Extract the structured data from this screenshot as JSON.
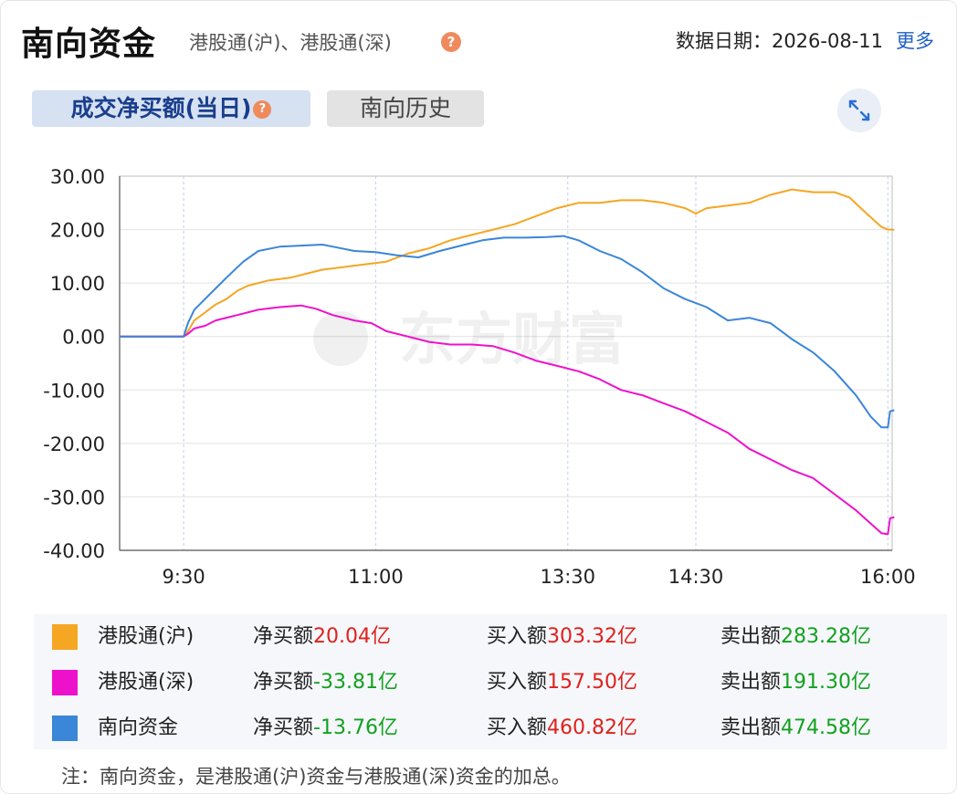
{
  "header": {
    "title": "南向资金",
    "subtitle": "港股通(沪)、港股通(深)",
    "help_glyph": "?",
    "date_label": "数据日期：2026-08-11",
    "more_label": "更多"
  },
  "tabs": [
    {
      "label": "成交净买额(当日)",
      "active": true
    },
    {
      "label": "南向历史",
      "active": false
    }
  ],
  "watermark": "东方财富",
  "icons": {
    "help": "help-icon",
    "expand": "expand-icon"
  },
  "chart_data": {
    "type": "line",
    "yticks": [
      "30.00",
      "20.00",
      "10.00",
      "0.00",
      "-10.00",
      "-20.00",
      "-30.00",
      "-40.00"
    ],
    "ylim": [
      -40,
      30
    ],
    "xlim": [
      0,
      330
    ],
    "xticks": [
      {
        "label": "9:30",
        "x": 0
      },
      {
        "label": "11:00",
        "x": 90
      },
      {
        "label": "13:30",
        "x": 180
      },
      {
        "label": "14:30",
        "x": 240
      },
      {
        "label": "16:00",
        "x": 330
      }
    ],
    "x_range_label_start": "9:30",
    "x_range_label_end": "16:00",
    "grid": true,
    "series": [
      {
        "name": "港股通(沪)",
        "color": "#f5a623",
        "points": [
          [
            -30,
            0
          ],
          [
            0,
            0
          ],
          [
            2,
            1
          ],
          [
            5,
            3
          ],
          [
            10,
            4.5
          ],
          [
            15,
            6
          ],
          [
            20,
            7
          ],
          [
            25,
            8.5
          ],
          [
            30,
            9.5
          ],
          [
            40,
            10.5
          ],
          [
            50,
            11
          ],
          [
            55,
            11.5
          ],
          [
            65,
            12.5
          ],
          [
            75,
            13
          ],
          [
            85,
            13.5
          ],
          [
            95,
            14
          ],
          [
            105,
            15.5
          ],
          [
            115,
            16.5
          ],
          [
            125,
            18
          ],
          [
            135,
            19
          ],
          [
            145,
            20
          ],
          [
            155,
            21
          ],
          [
            165,
            22.5
          ],
          [
            175,
            24
          ],
          [
            185,
            25
          ],
          [
            195,
            25
          ],
          [
            205,
            25.5
          ],
          [
            215,
            25.5
          ],
          [
            225,
            25
          ],
          [
            235,
            24
          ],
          [
            240,
            23
          ],
          [
            245,
            24
          ],
          [
            255,
            24.5
          ],
          [
            265,
            25
          ],
          [
            275,
            26.5
          ],
          [
            285,
            27.5
          ],
          [
            295,
            27
          ],
          [
            305,
            27
          ],
          [
            312,
            26
          ],
          [
            320,
            23
          ],
          [
            327,
            20.5
          ],
          [
            330,
            20
          ],
          [
            333,
            20
          ]
        ]
      },
      {
        "name": "港股通(深)",
        "color": "#ee11cc",
        "points": [
          [
            -30,
            0
          ],
          [
            0,
            0
          ],
          [
            2,
            0.5
          ],
          [
            5,
            1.5
          ],
          [
            10,
            2
          ],
          [
            15,
            3
          ],
          [
            25,
            4
          ],
          [
            35,
            5
          ],
          [
            45,
            5.5
          ],
          [
            55,
            5.8
          ],
          [
            62,
            5.2
          ],
          [
            70,
            4
          ],
          [
            80,
            3
          ],
          [
            88,
            2.5
          ],
          [
            95,
            1
          ],
          [
            105,
            0
          ],
          [
            115,
            -1
          ],
          [
            125,
            -1.5
          ],
          [
            135,
            -1.5
          ],
          [
            145,
            -1.8
          ],
          [
            155,
            -3
          ],
          [
            165,
            -4.5
          ],
          [
            175,
            -5.5
          ],
          [
            185,
            -6.5
          ],
          [
            195,
            -8
          ],
          [
            205,
            -10
          ],
          [
            215,
            -11
          ],
          [
            225,
            -12.5
          ],
          [
            235,
            -14
          ],
          [
            245,
            -16
          ],
          [
            255,
            -18
          ],
          [
            265,
            -21
          ],
          [
            275,
            -23
          ],
          [
            285,
            -25
          ],
          [
            295,
            -26.5
          ],
          [
            305,
            -29.5
          ],
          [
            315,
            -32.5
          ],
          [
            322,
            -35
          ],
          [
            327,
            -36.8
          ],
          [
            330,
            -37
          ],
          [
            331,
            -34
          ],
          [
            333,
            -33.8
          ]
        ]
      },
      {
        "name": "南向资金",
        "color": "#3a86d8",
        "points": [
          [
            -30,
            0
          ],
          [
            0,
            0
          ],
          [
            2,
            2.5
          ],
          [
            5,
            5
          ],
          [
            10,
            7
          ],
          [
            15,
            9
          ],
          [
            20,
            11
          ],
          [
            28,
            14
          ],
          [
            35,
            16
          ],
          [
            45,
            16.8
          ],
          [
            55,
            17
          ],
          [
            65,
            17.2
          ],
          [
            70,
            16.8
          ],
          [
            80,
            16
          ],
          [
            90,
            15.8
          ],
          [
            100,
            15.2
          ],
          [
            110,
            14.8
          ],
          [
            120,
            16
          ],
          [
            130,
            17
          ],
          [
            140,
            18
          ],
          [
            150,
            18.5
          ],
          [
            160,
            18.5
          ],
          [
            170,
            18.6
          ],
          [
            178,
            18.8
          ],
          [
            185,
            18
          ],
          [
            195,
            16
          ],
          [
            205,
            14.5
          ],
          [
            215,
            12
          ],
          [
            225,
            9
          ],
          [
            235,
            7
          ],
          [
            245,
            5.5
          ],
          [
            255,
            3
          ],
          [
            265,
            3.5
          ],
          [
            275,
            2.5
          ],
          [
            285,
            -0.5
          ],
          [
            295,
            -3
          ],
          [
            305,
            -6.5
          ],
          [
            315,
            -11
          ],
          [
            322,
            -15
          ],
          [
            327,
            -17
          ],
          [
            330,
            -17
          ],
          [
            331,
            -14
          ],
          [
            333,
            -13.8
          ]
        ]
      }
    ]
  },
  "legend": [
    {
      "name": "港股通(沪)",
      "color": "#f5a623",
      "net_label": "净买额",
      "net_value": "20.04亿",
      "net_dir": "up",
      "buy_label": "买入额",
      "buy_value": "303.32亿",
      "sell_label": "卖出额",
      "sell_value": "283.28亿"
    },
    {
      "name": "港股通(深)",
      "color": "#ee11cc",
      "net_label": "净买额",
      "net_value": "-33.81亿",
      "net_dir": "down",
      "buy_label": "买入额",
      "buy_value": "157.50亿",
      "sell_label": "卖出额",
      "sell_value": "191.30亿"
    },
    {
      "name": "南向资金",
      "color": "#3a86d8",
      "net_label": "净买额",
      "net_value": "-13.76亿",
      "net_dir": "down",
      "buy_label": "买入额",
      "buy_value": "460.82亿",
      "sell_label": "卖出额",
      "sell_value": "474.58亿"
    }
  ],
  "note": "注：南向资金，是港股通(沪)资金与港股通(深)资金的加总。"
}
